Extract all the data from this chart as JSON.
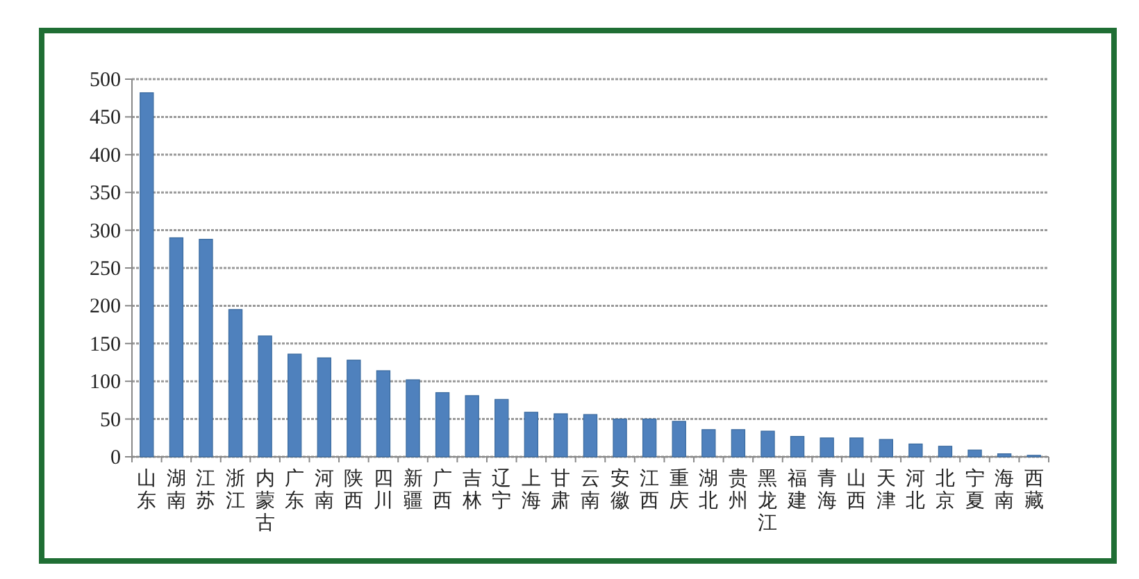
{
  "chart_data": {
    "type": "bar",
    "categories": [
      "山东",
      "湖南",
      "江苏",
      "浙江",
      "内蒙古",
      "广东",
      "河南",
      "陕西",
      "四川",
      "新疆",
      "广西",
      "吉林",
      "辽宁",
      "上海",
      "甘肃",
      "云南",
      "安徽",
      "江西",
      "重庆",
      "湖北",
      "贵州",
      "黑龙江",
      "福建",
      "青海",
      "山西",
      "天津",
      "河北",
      "北京",
      "宁夏",
      "海南",
      "西藏"
    ],
    "values": [
      482,
      290,
      288,
      195,
      160,
      136,
      131,
      128,
      114,
      102,
      85,
      81,
      76,
      59,
      57,
      56,
      50,
      50,
      47,
      36,
      36,
      34,
      27,
      25,
      25,
      23,
      17,
      14,
      9,
      4,
      2
    ],
    "color": "#4f81bd",
    "ylim": [
      0,
      500
    ],
    "yticks": [
      0,
      50,
      100,
      150,
      200,
      250,
      300,
      350,
      400,
      450,
      500
    ],
    "grid": "y"
  }
}
